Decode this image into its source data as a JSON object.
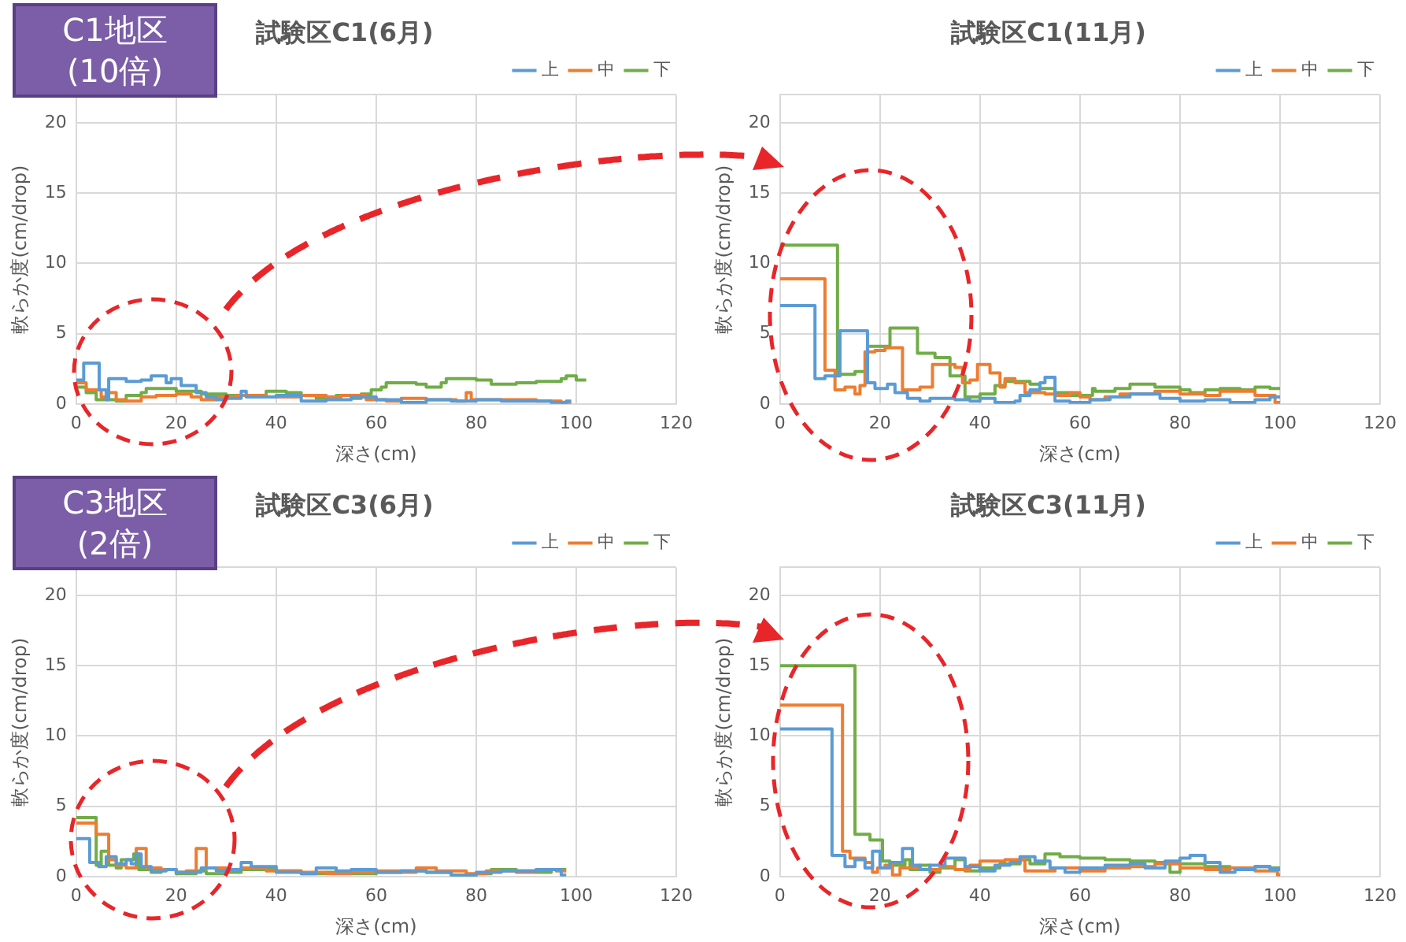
{
  "chart_data": [
    {
      "type": "step",
      "title": "試験区C1(6月)",
      "xlabel": "深さ(cm)",
      "ylabel": "軟らか度(cm/drop)",
      "annotations": [
        "C1地区 (10倍)"
      ],
      "xlim": [
        0,
        120
      ],
      "xticks": [
        0,
        20,
        40,
        60,
        80,
        100,
        120
      ],
      "ylim": [
        0,
        22
      ],
      "yticks": [
        0,
        5,
        10,
        15,
        20
      ],
      "grid": true,
      "legend": "top right",
      "marker": "none",
      "series": [
        {
          "name": "上",
          "color": "#5b9bd5",
          "x": [
            0,
            1.5,
            4.6,
            6,
            6.5,
            10,
            13,
            15,
            18,
            19,
            21,
            22,
            24,
            26,
            28,
            30,
            33,
            34,
            40,
            45,
            50,
            55,
            60,
            65,
            70,
            75,
            80,
            85,
            90,
            95,
            98,
            99
          ],
          "values": [
            1.7,
            2.9,
            1.0,
            0.3,
            1.8,
            1.6,
            1.7,
            2.0,
            1.5,
            1.8,
            1.3,
            1.3,
            0.8,
            0.5,
            0.3,
            0.4,
            0.9,
            0.5,
            0.6,
            0.2,
            0.3,
            0.5,
            0.3,
            0.1,
            0.3,
            0.2,
            0.3,
            0.2,
            0.2,
            0.1,
            0.2,
            0.2
          ]
        },
        {
          "name": "中",
          "color": "#ed7d31",
          "x": [
            0,
            2,
            5,
            6,
            8,
            10,
            13,
            16,
            20,
            23,
            25,
            28,
            32,
            38,
            45,
            50,
            53,
            58,
            62,
            65,
            70,
            76,
            78,
            79,
            85,
            88,
            92,
            97,
            99
          ],
          "values": [
            1.5,
            1.0,
            0.5,
            0.8,
            0.3,
            0.2,
            0.5,
            0.6,
            0.7,
            0.5,
            0.3,
            0.5,
            0.6,
            0.5,
            0.6,
            0.5,
            0.6,
            0.3,
            0.2,
            0.4,
            0.3,
            0.2,
            0.8,
            0.3,
            0.3,
            0.3,
            0.2,
            0.1,
            0.1
          ]
        },
        {
          "name": "下",
          "color": "#70ad47",
          "x": [
            0,
            2,
            4,
            8,
            10,
            13,
            14,
            20,
            25,
            30,
            36,
            38,
            42,
            45,
            48,
            52,
            55,
            57,
            59,
            61,
            62,
            68,
            70,
            73,
            74,
            80,
            83,
            88,
            92,
            97,
            98,
            100,
            102
          ],
          "values": [
            1.2,
            0.8,
            0.3,
            0.2,
            0.6,
            0.8,
            1.1,
            0.9,
            0.7,
            0.6,
            0.6,
            0.9,
            0.8,
            0.6,
            0.4,
            0.6,
            0.4,
            0.7,
            1.0,
            1.2,
            1.5,
            1.4,
            1.2,
            1.5,
            1.8,
            1.7,
            1.4,
            1.5,
            1.6,
            1.8,
            2.0,
            1.7,
            1.7
          ]
        }
      ]
    },
    {
      "type": "step",
      "title": "試験区C1(11月)",
      "xlabel": "深さ(cm)",
      "ylabel": "軟らか度(cm/drop)",
      "xlim": [
        0,
        120
      ],
      "xticks": [
        0,
        20,
        40,
        60,
        80,
        100,
        120
      ],
      "ylim": [
        0,
        22
      ],
      "yticks": [
        0,
        5,
        10,
        15,
        20
      ],
      "grid": true,
      "legend": "top right",
      "marker": "none",
      "series": [
        {
          "name": "上",
          "color": "#5b9bd5",
          "x": [
            0,
            7,
            9,
            12,
            17.5,
            19,
            21.5,
            23,
            25.5,
            28,
            30,
            35,
            38,
            40,
            43,
            47,
            48,
            50,
            52,
            53,
            55,
            58,
            62,
            66,
            70,
            76,
            80,
            85,
            90,
            95,
            98,
            100
          ],
          "values": [
            7.0,
            1.8,
            2.0,
            5.2,
            1.5,
            1.1,
            1.4,
            0.8,
            0.4,
            0.2,
            0.4,
            0.3,
            0.2,
            0.4,
            0.1,
            0.2,
            0.6,
            1.0,
            1.5,
            1.9,
            0.2,
            0.1,
            0.3,
            0.5,
            0.7,
            0.4,
            0.2,
            0.3,
            0.1,
            0.3,
            0.5,
            0.5
          ]
        },
        {
          "name": "中",
          "color": "#ed7d31",
          "x": [
            0,
            9,
            11,
            13,
            15,
            16,
            17,
            19,
            21,
            24.5,
            28,
            30.5,
            35,
            36.5,
            38,
            39.5,
            42,
            44,
            45,
            47,
            49,
            53,
            55,
            58,
            60,
            62,
            65,
            68,
            75,
            80,
            85,
            88,
            95,
            99,
            100
          ],
          "values": [
            8.9,
            2.4,
            1.0,
            1.2,
            0.7,
            1.3,
            3.7,
            3.8,
            4.0,
            1.0,
            1.2,
            2.8,
            2.6,
            1.5,
            1.7,
            2.8,
            2.2,
            1.2,
            1.8,
            1.5,
            0.8,
            0.7,
            0.6,
            0.8,
            0.5,
            0.3,
            0.5,
            0.7,
            0.9,
            0.7,
            0.6,
            0.9,
            0.6,
            0.1,
            0.1
          ]
        },
        {
          "name": "下",
          "color": "#70ad47",
          "x": [
            0,
            11.5,
            15,
            17.5,
            22,
            27.5,
            31,
            34,
            37,
            40,
            43,
            45,
            50,
            52,
            55,
            58,
            62.5,
            63,
            67,
            70,
            75,
            80,
            82,
            85,
            88,
            92,
            95,
            98,
            100
          ],
          "values": [
            11.3,
            2.1,
            2.3,
            4.1,
            5.4,
            3.6,
            3.3,
            2.0,
            0.5,
            0.7,
            1.3,
            1.6,
            1.4,
            1.1,
            0.8,
            0.6,
            1.1,
            0.9,
            1.1,
            1.4,
            1.2,
            1.0,
            0.8,
            1.0,
            1.1,
            1.0,
            1.2,
            1.1,
            1.1
          ]
        }
      ]
    },
    {
      "type": "step",
      "title": "試験区C3(6月)",
      "xlabel": "深さ(cm)",
      "ylabel": "軟らか度(cm/drop)",
      "annotations": [
        "C3地区 (2倍)"
      ],
      "xlim": [
        0,
        120
      ],
      "xticks": [
        0,
        20,
        40,
        60,
        80,
        100,
        120
      ],
      "ylim": [
        0,
        22
      ],
      "yticks": [
        0,
        5,
        10,
        15,
        20
      ],
      "grid": true,
      "legend": "top right",
      "marker": "none",
      "series": [
        {
          "name": "上",
          "color": "#5b9bd5",
          "x": [
            0,
            2.7,
            4.5,
            6,
            8,
            10,
            11,
            12,
            13,
            15,
            18,
            20,
            25,
            28,
            30,
            33,
            35,
            40,
            45,
            48,
            52,
            55,
            60,
            65,
            70,
            75,
            80,
            85,
            92,
            97,
            98
          ],
          "values": [
            2.7,
            1.0,
            0.7,
            1.4,
            0.9,
            1.2,
            0.9,
            1.6,
            0.7,
            0.4,
            0.5,
            0.3,
            0.6,
            0.4,
            0.5,
            1.0,
            0.7,
            0.3,
            0.2,
            0.6,
            0.4,
            0.5,
            0.3,
            0.4,
            0.3,
            0.1,
            0.3,
            0.4,
            0.5,
            0.1,
            0.1
          ]
        },
        {
          "name": "中",
          "color": "#ed7d31",
          "x": [
            0,
            4,
            6.5,
            8,
            10,
            12,
            14,
            17,
            20,
            22,
            24,
            26,
            30,
            33,
            38,
            45,
            50,
            55,
            60,
            65,
            68,
            72,
            78,
            82,
            88,
            92,
            96,
            98
          ],
          "values": [
            3.8,
            3.0,
            1.2,
            0.8,
            0.6,
            2.0,
            0.6,
            0.5,
            0.3,
            0.4,
            2.0,
            0.6,
            0.5,
            0.6,
            0.4,
            0.3,
            0.2,
            0.3,
            0.4,
            0.3,
            0.6,
            0.4,
            0.2,
            0.4,
            0.3,
            0.5,
            0.4,
            0.4
          ]
        },
        {
          "name": "下",
          "color": "#70ad47",
          "x": [
            0,
            4,
            5,
            6.5,
            8,
            9,
            11.5,
            12.5,
            15,
            17,
            20,
            24,
            26,
            30,
            33,
            40,
            45,
            50,
            55,
            60,
            65,
            70,
            75,
            80,
            83,
            88,
            92,
            95,
            98
          ],
          "values": [
            4.2,
            0.8,
            1.8,
            0.8,
            0.6,
            1.2,
            1.6,
            0.5,
            0.3,
            0.5,
            0.2,
            0.4,
            0.2,
            0.3,
            0.5,
            0.4,
            0.2,
            0.3,
            0.2,
            0.3,
            0.4,
            0.3,
            0.1,
            0.2,
            0.5,
            0.4,
            0.3,
            0.5,
            0.5
          ]
        }
      ]
    },
    {
      "type": "step",
      "title": "試験区C3(11月)",
      "xlabel": "深さ(cm)",
      "ylabel": "軟らか度(cm/drop)",
      "xlim": [
        0,
        120
      ],
      "xticks": [
        0,
        20,
        40,
        60,
        80,
        100,
        120
      ],
      "ylim": [
        0,
        22
      ],
      "yticks": [
        0,
        5,
        10,
        15,
        20
      ],
      "grid": true,
      "legend": "top right",
      "marker": "none",
      "series": [
        {
          "name": "上",
          "color": "#5b9bd5",
          "x": [
            0,
            10.4,
            13,
            15,
            17,
            18.5,
            20,
            22,
            24.5,
            26.5,
            28,
            30,
            33,
            37,
            40,
            43,
            46,
            48,
            51,
            54,
            57,
            60,
            65,
            70,
            73,
            77,
            80,
            82,
            85,
            88,
            91,
            95,
            98,
            100
          ],
          "values": [
            10.5,
            1.5,
            0.7,
            1.2,
            0.6,
            1.8,
            0.6,
            1.0,
            2.0,
            0.8,
            0.5,
            0.8,
            1.3,
            0.7,
            0.4,
            0.8,
            1.0,
            1.4,
            1.1,
            0.6,
            0.3,
            0.6,
            0.8,
            0.9,
            0.6,
            1.1,
            1.3,
            1.5,
            1.0,
            0.3,
            0.5,
            0.7,
            0.5,
            0.5
          ]
        },
        {
          "name": "中",
          "color": "#ed7d31",
          "x": [
            0,
            12.5,
            14,
            17,
            18.5,
            19.5,
            21,
            22.5,
            24,
            28,
            32,
            35,
            38,
            40,
            45,
            49,
            55,
            60,
            65,
            70,
            75,
            80,
            85,
            90,
            95,
            99.5,
            100
          ],
          "values": [
            12.2,
            1.8,
            1.3,
            1.0,
            0.3,
            0.6,
            0.8,
            0.1,
            0.6,
            0.5,
            0.7,
            0.5,
            0.8,
            1.1,
            1.2,
            0.4,
            0.6,
            0.4,
            0.6,
            0.7,
            0.9,
            0.6,
            0.5,
            0.6,
            0.4,
            0.1,
            0.1
          ]
        },
        {
          "name": "下",
          "color": "#70ad47",
          "x": [
            0,
            15,
            18,
            20.5,
            22,
            25,
            26,
            28,
            30,
            32,
            35,
            37,
            40,
            44,
            48,
            50,
            53,
            56,
            60,
            65,
            70,
            75,
            78,
            80,
            85,
            90,
            95,
            98,
            100
          ],
          "values": [
            15.0,
            3.0,
            2.6,
            1.1,
            0.8,
            1.2,
            0.5,
            0.8,
            0.3,
            0.6,
            1.2,
            0.4,
            0.6,
            0.9,
            1.2,
            0.9,
            1.6,
            1.4,
            1.3,
            1.2,
            1.1,
            1.0,
            0.3,
            0.9,
            0.7,
            0.6,
            0.7,
            0.6,
            0.6
          ]
        }
      ]
    }
  ]
}
